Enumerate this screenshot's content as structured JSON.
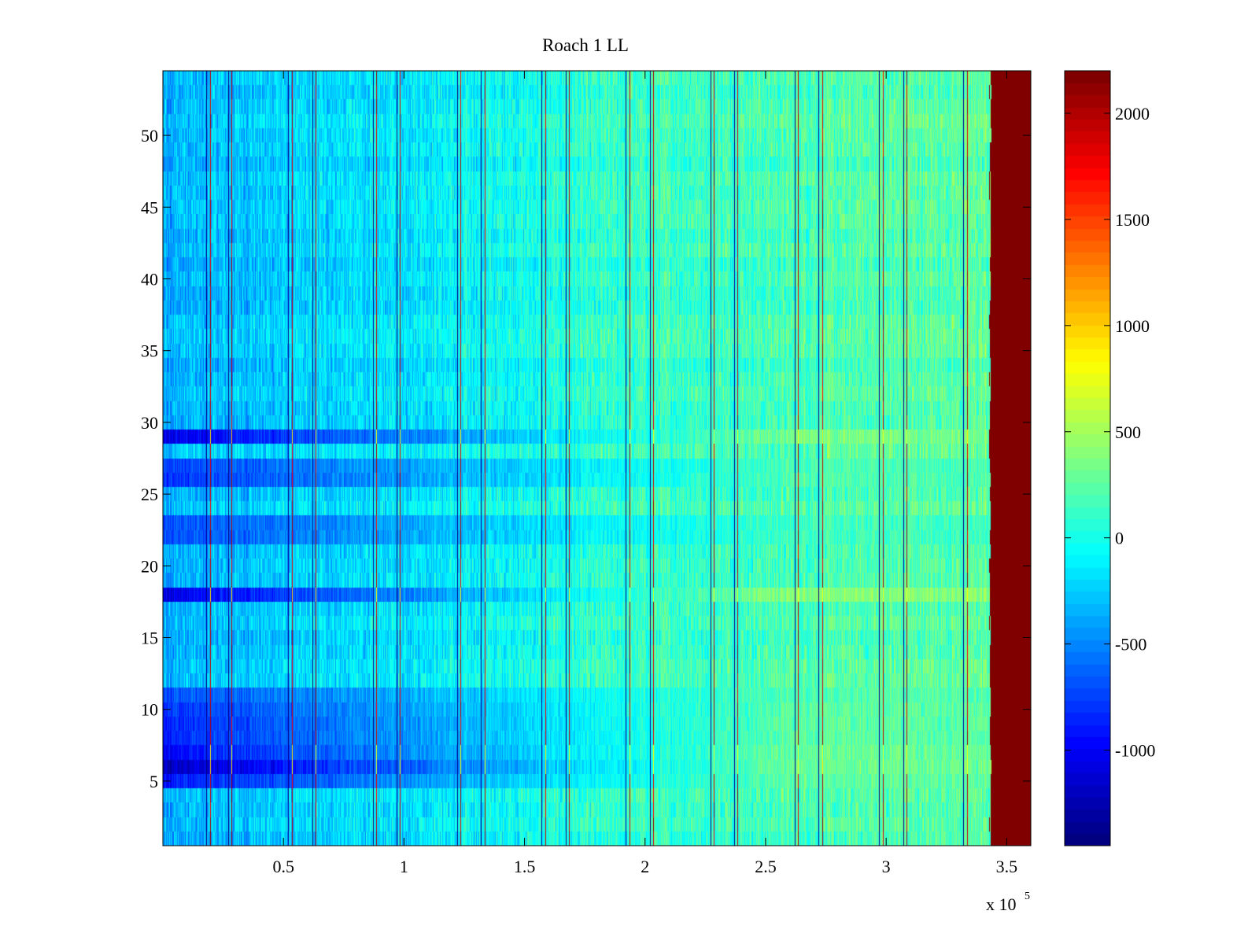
{
  "chart_data": {
    "type": "heatmap",
    "title": "Roach 1 LL",
    "xlabel": "",
    "ylabel": "",
    "x_exponent_label": "x 10",
    "x_exponent_power": "5",
    "xlim": [
      0,
      360000
    ],
    "ylim": [
      0.5,
      54.5
    ],
    "x_ticks": [
      0.5,
      1,
      1.5,
      2,
      2.5,
      3,
      3.5
    ],
    "x_tick_labels": [
      "0.5",
      "1",
      "1.5",
      "2",
      "2.5",
      "3",
      "3.5"
    ],
    "y_ticks": [
      5,
      10,
      15,
      20,
      25,
      30,
      35,
      40,
      45,
      50
    ],
    "y_tick_labels": [
      "5",
      "10",
      "15",
      "20",
      "25",
      "30",
      "35",
      "40",
      "45",
      "50"
    ],
    "rows": 54,
    "data_extent_x": 343000,
    "saturated_region": {
      "x_start": 343000,
      "x_end": 360000,
      "value": 2200
    },
    "colorbar": {
      "colormap": "jet",
      "clim": [
        -1450,
        2200
      ],
      "ticks": [
        -1000,
        -500,
        0,
        500,
        1000,
        1500,
        2000
      ],
      "tick_labels": [
        "-1000",
        "-500",
        "0",
        "500",
        "1000",
        "1500",
        "2000"
      ]
    },
    "value_gradient": {
      "x": [
        0,
        100000,
        200000,
        343000
      ],
      "mean": [
        -350,
        -150,
        120,
        250
      ]
    },
    "vertical_stripe_pairs": [
      {
        "center": 22000,
        "dark_x": 18000,
        "red_x": 19500,
        "yellow_x": 18800
      },
      {
        "center": 61000,
        "dark_x": 52000,
        "red_x": 53500,
        "yellow_x": 52800
      },
      {
        "center": 96000,
        "dark_x": 87000,
        "red_x": 88500,
        "yellow_x": 87800
      },
      {
        "center": 131000,
        "dark_x": 122000,
        "red_x": 123500,
        "yellow_x": 122800
      },
      {
        "center": 166000,
        "dark_x": 157000,
        "red_x": 158500,
        "yellow_x": 157800
      },
      {
        "center": 201000,
        "dark_x": 192000,
        "red_x": 193500,
        "yellow_x": 192800
      },
      {
        "center": 236000,
        "dark_x": 227000,
        "red_x": 228500,
        "yellow_x": 227800
      },
      {
        "center": 271000,
        "dark_x": 262000,
        "red_x": 263500,
        "yellow_x": 262800
      },
      {
        "center": 306000,
        "dark_x": 297000,
        "red_x": 298500,
        "yellow_x": 297800
      },
      {
        "center": 336000,
        "dark_x": 332000,
        "red_x": 333500,
        "yellow_x": 332800
      }
    ],
    "second_stripes": [
      27000,
      62000,
      97000,
      132000,
      167000,
      202000,
      237000,
      272000,
      307000
    ],
    "anomalous_rows": [
      {
        "row": 29,
        "left_value": -1050,
        "right_value": 350
      },
      {
        "row": 18,
        "left_value": -1050,
        "right_value": 400
      },
      {
        "row": 6,
        "left_value": -1200,
        "right_value": 300
      },
      {
        "row": 7,
        "left_value": -950,
        "right_value": 280
      },
      {
        "row": 8,
        "left_value": -850,
        "right_value": 250
      },
      {
        "row": 9,
        "left_value": -850,
        "right_value": 250
      },
      {
        "row": 10,
        "left_value": -800,
        "right_value": 240
      },
      {
        "row": 11,
        "left_value": -700,
        "right_value": 220
      },
      {
        "row": 5,
        "left_value": -900,
        "right_value": 260
      },
      {
        "row": 22,
        "left_value": -700,
        "right_value": 150
      },
      {
        "row": 23,
        "left_value": -700,
        "right_value": 150
      },
      {
        "row": 26,
        "left_value": -800,
        "right_value": 200
      },
      {
        "row": 27,
        "left_value": -750,
        "right_value": 180
      }
    ],
    "grid": false
  }
}
